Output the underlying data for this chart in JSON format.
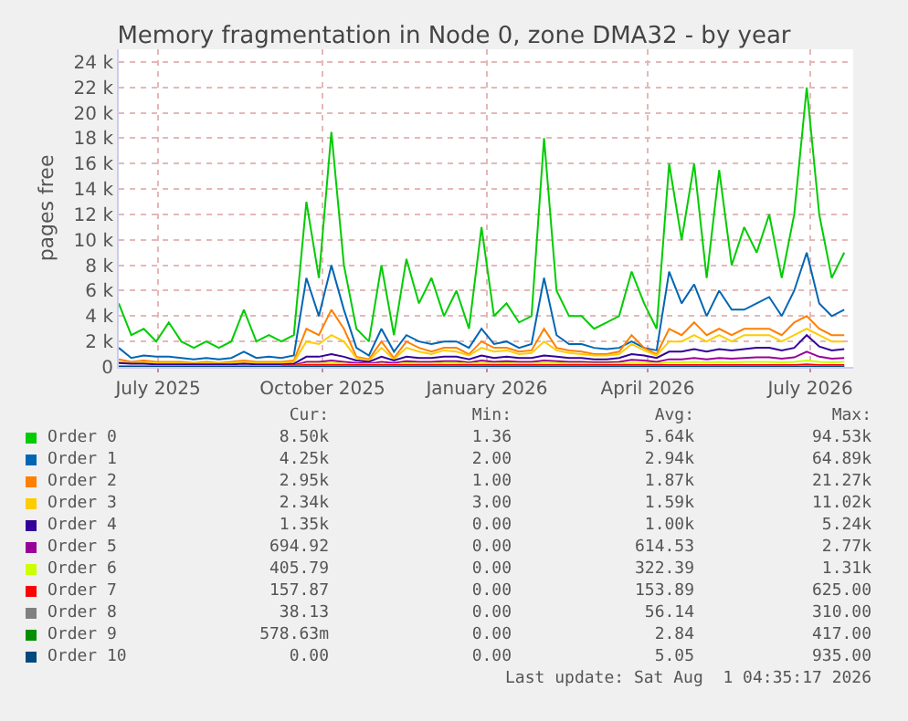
{
  "chart_data": {
    "type": "line",
    "title": "Memory fragmentation in Node 0, zone DMA32 - by year",
    "ylabel": "pages free",
    "x": [
      "2025-06-09",
      "2025-06-16",
      "2025-06-23",
      "2025-06-30",
      "2025-07-07",
      "2025-07-14",
      "2025-07-21",
      "2025-07-28",
      "2025-08-04",
      "2025-08-11",
      "2025-08-18",
      "2025-08-25",
      "2025-09-01",
      "2025-09-08",
      "2025-09-15",
      "2025-09-22",
      "2025-09-29",
      "2025-10-06",
      "2025-10-13",
      "2025-10-20",
      "2025-10-27",
      "2025-11-03",
      "2025-11-10",
      "2025-11-17",
      "2025-11-24",
      "2025-12-01",
      "2025-12-08",
      "2025-12-15",
      "2025-12-22",
      "2025-12-29",
      "2026-01-05",
      "2026-01-12",
      "2026-01-19",
      "2026-01-26",
      "2026-02-02",
      "2026-02-09",
      "2026-02-16",
      "2026-02-23",
      "2026-03-02",
      "2026-03-09",
      "2026-03-16",
      "2026-03-23",
      "2026-03-30",
      "2026-04-06",
      "2026-04-13",
      "2026-04-20",
      "2026-04-27",
      "2026-05-04",
      "2026-05-11",
      "2026-05-18",
      "2026-05-25",
      "2026-06-01",
      "2026-06-08",
      "2026-06-15",
      "2026-06-22",
      "2026-06-29",
      "2026-07-06",
      "2026-07-13",
      "2026-07-20"
    ],
    "xlim": [
      "2025-06-09",
      "2026-07-25"
    ],
    "xticks": [
      {
        "value": "2025-07-01",
        "label": "July 2025"
      },
      {
        "value": "2025-10-01",
        "label": "October 2025"
      },
      {
        "value": "2026-01-01",
        "label": "January 2026"
      },
      {
        "value": "2026-04-01",
        "label": "April 2026"
      },
      {
        "value": "2026-07-01",
        "label": "July 2026"
      }
    ],
    "ylim": [
      0,
      25000
    ],
    "yticks": [
      0,
      {
        "value": 2000,
        "label": "2 k"
      },
      {
        "value": 4000,
        "label": "4 k"
      },
      {
        "value": 6000,
        "label": "6 k"
      },
      {
        "value": 8000,
        "label": "8 k"
      },
      {
        "value": 10000,
        "label": "10 k"
      },
      {
        "value": 12000,
        "label": "12 k"
      },
      {
        "value": 14000,
        "label": "14 k"
      },
      {
        "value": 16000,
        "label": "16 k"
      },
      {
        "value": 18000,
        "label": "18 k"
      },
      {
        "value": 20000,
        "label": "20 k"
      },
      {
        "value": 22000,
        "label": "22 k"
      },
      {
        "value": 24000,
        "label": "24 k"
      }
    ],
    "grid": true,
    "legend": "bottom",
    "line_style": "solid",
    "marker": "none",
    "series": [
      {
        "name": "Order 0",
        "color": "#00cc00",
        "values": [
          5000,
          2500,
          3000,
          2000,
          3500,
          2000,
          1500,
          2000,
          1500,
          2000,
          4500,
          2000,
          2500,
          2000,
          2500,
          13000,
          7000,
          18500,
          8000,
          3000,
          2000,
          8000,
          2500,
          8500,
          5000,
          7000,
          4000,
          6000,
          3000,
          11000,
          4000,
          5000,
          3500,
          4000,
          18000,
          6000,
          4000,
          4000,
          3000,
          3500,
          4000,
          7500,
          5000,
          3000,
          16000,
          10000,
          16000,
          7000,
          15500,
          8000,
          11000,
          9000,
          12000,
          7000,
          12000,
          22000,
          12000,
          7000,
          9000
        ]
      },
      {
        "name": "Order 1",
        "color": "#0066b3",
        "values": [
          1500,
          700,
          900,
          800,
          800,
          700,
          600,
          700,
          600,
          700,
          1200,
          700,
          800,
          700,
          900,
          7000,
          4000,
          8000,
          4500,
          1500,
          900,
          3000,
          1200,
          2500,
          2000,
          1800,
          2000,
          2000,
          1500,
          3000,
          1800,
          2000,
          1500,
          1800,
          7000,
          2500,
          1800,
          1800,
          1500,
          1400,
          1500,
          2000,
          1500,
          1300,
          7500,
          5000,
          6500,
          4000,
          6000,
          4500,
          4500,
          5000,
          5500,
          4000,
          6000,
          9000,
          5000,
          4000,
          4500
        ]
      },
      {
        "name": "Order 2",
        "color": "#ff8000",
        "values": [
          600,
          400,
          500,
          400,
          400,
          400,
          300,
          400,
          300,
          400,
          500,
          400,
          400,
          400,
          500,
          3000,
          2500,
          4500,
          3000,
          800,
          600,
          2000,
          700,
          2000,
          1500,
          1200,
          1500,
          1500,
          1000,
          2000,
          1500,
          1500,
          1200,
          1300,
          3000,
          1500,
          1300,
          1200,
          1000,
          1000,
          1200,
          2500,
          1500,
          1000,
          3000,
          2500,
          3500,
          2500,
          3000,
          2500,
          3000,
          3000,
          3000,
          2500,
          3500,
          4000,
          3000,
          2500,
          2500
        ]
      },
      {
        "name": "Order 3",
        "color": "#ffcc00",
        "values": [
          400,
          300,
          350,
          300,
          300,
          300,
          250,
          300,
          250,
          300,
          400,
          300,
          300,
          300,
          400,
          2000,
          1800,
          2500,
          2000,
          700,
          500,
          1500,
          600,
          1500,
          1200,
          1000,
          1300,
          1200,
          900,
          1500,
          1200,
          1300,
          1000,
          1100,
          2000,
          1300,
          1100,
          1000,
          900,
          900,
          1000,
          1800,
          1300,
          900,
          2000,
          2000,
          2500,
          2000,
          2500,
          2000,
          2500,
          2500,
          2500,
          2000,
          2500,
          3000,
          2500,
          2000,
          2000
        ]
      },
      {
        "name": "Order 4",
        "color": "#330099",
        "values": [
          300,
          250,
          250,
          200,
          200,
          200,
          200,
          200,
          200,
          200,
          250,
          200,
          200,
          200,
          250,
          800,
          800,
          1000,
          800,
          500,
          400,
          800,
          500,
          800,
          700,
          700,
          800,
          800,
          600,
          900,
          700,
          800,
          700,
          700,
          900,
          800,
          700,
          700,
          600,
          600,
          700,
          1000,
          900,
          700,
          1200,
          1200,
          1400,
          1200,
          1400,
          1300,
          1400,
          1500,
          1500,
          1300,
          1500,
          2500,
          1600,
          1300,
          1400
        ]
      },
      {
        "name": "Order 5",
        "color": "#990099",
        "values": [
          null,
          null,
          null,
          null,
          null,
          null,
          null,
          null,
          null,
          null,
          null,
          null,
          null,
          100,
          120,
          400,
          400,
          500,
          400,
          300,
          250,
          400,
          300,
          450,
          400,
          400,
          450,
          450,
          350,
          500,
          400,
          450,
          400,
          400,
          500,
          450,
          400,
          400,
          350,
          350,
          400,
          550,
          500,
          400,
          600,
          600,
          700,
          600,
          700,
          650,
          700,
          750,
          750,
          650,
          750,
          1200,
          800,
          650,
          700
        ]
      },
      {
        "name": "Order 6",
        "color": "#ccff00",
        "values": [
          80,
          80,
          80,
          80,
          80,
          80,
          80,
          80,
          80,
          80,
          80,
          80,
          80,
          80,
          80,
          250,
          250,
          300,
          250,
          200,
          200,
          250,
          200,
          300,
          250,
          250,
          300,
          300,
          250,
          300,
          250,
          300,
          250,
          250,
          300,
          300,
          250,
          250,
          250,
          250,
          250,
          300,
          300,
          250,
          350,
          350,
          400,
          350,
          400,
          350,
          400,
          400,
          400,
          350,
          400,
          500,
          400,
          350,
          400
        ]
      },
      {
        "name": "Order 7",
        "color": "#ff0000",
        "values": [
          null,
          null,
          null,
          null,
          null,
          null,
          null,
          null,
          null,
          null,
          null,
          null,
          null,
          100,
          100,
          150,
          150,
          150,
          150,
          150,
          150,
          150,
          150,
          150,
          150,
          150,
          150,
          150,
          150,
          150,
          150,
          150,
          150,
          150,
          150,
          150,
          150,
          150,
          150,
          150,
          150,
          150,
          150,
          150,
          150,
          150,
          150,
          150,
          150,
          150,
          150,
          150,
          150,
          150,
          150,
          200,
          150,
          150,
          150
        ]
      },
      {
        "name": "Order 8",
        "color": "#808080",
        "values": [
          50,
          50,
          50,
          50,
          50,
          50,
          50,
          50,
          50,
          50,
          50,
          50,
          50,
          50,
          50,
          50,
          50,
          50,
          50,
          50,
          50,
          50,
          50,
          50,
          50,
          50,
          50,
          50,
          50,
          50,
          50,
          50,
          50,
          50,
          50,
          50,
          50,
          50,
          50,
          50,
          50,
          50,
          50,
          50,
          50,
          50,
          50,
          50,
          50,
          50,
          50,
          50,
          50,
          50,
          50,
          50,
          50,
          50,
          50
        ]
      },
      {
        "name": "Order 9",
        "color": "#008f00",
        "values": [
          null,
          null,
          null,
          null,
          null,
          null,
          null,
          null,
          null,
          null,
          null,
          null,
          null,
          null,
          null,
          null,
          null,
          null,
          null,
          null,
          null,
          null,
          null,
          null,
          null,
          null,
          null,
          null,
          null,
          null,
          null,
          null,
          null,
          null,
          null,
          null,
          null,
          null,
          null,
          null,
          null,
          null,
          null,
          null,
          null,
          null,
          null,
          null,
          null,
          null,
          null,
          null,
          null,
          null,
          null,
          null,
          null,
          null,
          null
        ]
      },
      {
        "name": "Order 10",
        "color": "#00487d",
        "values": [
          0,
          0,
          0,
          0,
          0,
          0,
          0,
          0,
          0,
          0,
          0,
          0,
          0,
          0,
          0,
          0,
          0,
          0,
          0,
          0,
          0,
          0,
          0,
          0,
          0,
          0,
          0,
          0,
          0,
          0,
          0,
          0,
          0,
          0,
          0,
          0,
          0,
          0,
          0,
          0,
          0,
          0,
          0,
          0,
          0,
          0,
          0,
          0,
          0,
          0,
          0,
          0,
          0,
          0,
          0,
          0,
          0,
          0,
          0
        ]
      }
    ],
    "annotations": [
      "Cur:",
      "Min:",
      "Avg:",
      "Max:",
      "8.50k",
      "1.36",
      "5.64k",
      "94.53k",
      "4.25k",
      "2.00",
      "2.94k",
      "64.89k",
      "2.95k",
      "1.00",
      "1.87k",
      "21.27k",
      "2.34k",
      "3.00",
      "1.59k",
      "11.02k",
      "1.35k",
      "0.00",
      "1.00k",
      "5.24k",
      "694.92",
      "0.00",
      "614.53",
      "2.77k",
      "405.79",
      "0.00",
      "322.39",
      "1.31k",
      "157.87",
      "0.00",
      "153.89",
      "625.00",
      "38.13",
      "0.00",
      "56.14",
      "310.00",
      "578.63m",
      "0.00",
      "2.84",
      "417.00",
      "0.00",
      "0.00",
      "5.05",
      "935.00",
      "Last update: Sat Aug  1 04:35:17 2026"
    ]
  }
}
